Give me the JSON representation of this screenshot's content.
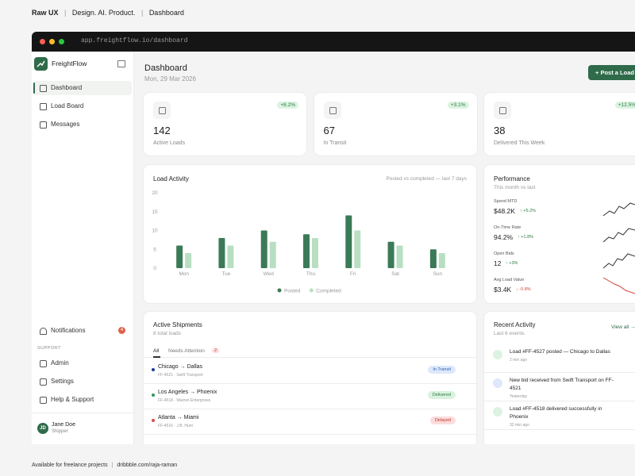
{
  "header": {
    "brand": "Raw UX",
    "tagline": "Design. AI. Product.",
    "page": "Dashboard"
  },
  "browser": {
    "url": "app.freightflow.io/dashboard"
  },
  "sidebar": {
    "app_name": "FreightFlow",
    "nav": [
      "Dashboard",
      "Load Board",
      "Messages"
    ],
    "notifications": {
      "label": "Notifications",
      "count": "4"
    },
    "support_heading": "SUPPORT",
    "support": [
      "Admin",
      "Settings",
      "Help & Support"
    ],
    "user": {
      "initials": "JD",
      "name": "Jane Doe",
      "role": "Shipper"
    }
  },
  "main": {
    "title": "Dashboard",
    "date": "Mon, 29 Mar 2026",
    "action": "+ Post a Load"
  },
  "stats": [
    {
      "value": "142",
      "label": "Active Loads",
      "change": "+8.2%"
    },
    {
      "value": "67",
      "label": "In Transit",
      "change": "+3.1%"
    },
    {
      "value": "38",
      "label": "Delivered This Week",
      "change": "+12.5%"
    }
  ],
  "chart_data": {
    "type": "bar",
    "title": "Load Activity",
    "subtitle": "Posted vs completed — last 7 days",
    "categories": [
      "Mon",
      "Tue",
      "Wed",
      "Thu",
      "Fri",
      "Sat",
      "Sun"
    ],
    "series": [
      {
        "name": "Posted",
        "color": "#3b7a57",
        "values": [
          6,
          8,
          10,
          9,
          14,
          7,
          5
        ]
      },
      {
        "name": "Completed",
        "color": "#b9dfc3",
        "values": [
          4,
          6,
          7,
          8,
          10,
          6,
          4
        ]
      }
    ],
    "ylim": [
      0,
      20
    ],
    "yticks": [
      0,
      5,
      10,
      15,
      20
    ],
    "grid": false,
    "legend": "bottom"
  },
  "performance": {
    "title": "Performance",
    "subtitle": "This month vs last",
    "metrics": [
      {
        "label": "Spend MTD",
        "value": "$48.2K",
        "change": "↑ +5.2%"
      },
      {
        "label": "On-Time Rate",
        "value": "94.2%",
        "change": "↑ +1.8%"
      },
      {
        "label": "Open Bids",
        "value": "12",
        "change": "↑ +3%"
      },
      {
        "label": "Avg Load Value",
        "value": "$3.4K",
        "change": "↓ -0.8%"
      }
    ]
  },
  "shipments": {
    "title": "Active Shipments",
    "subtitle": "8 total loads",
    "tabs": [
      "All",
      "Needs Attention"
    ],
    "tab_count": "2",
    "rows": [
      {
        "route": "Chicago → Dallas",
        "meta": "FF-4521 · Swift Transport",
        "status": "In Transit"
      },
      {
        "route": "Los Angeles → Phoenix",
        "meta": "FF-4518 · Warren Enterprises",
        "status": "Delivered"
      },
      {
        "route": "Atlanta → Miami",
        "meta": "FF-4516 · J.B. Hunt",
        "status": "Delayed"
      }
    ]
  },
  "activity": {
    "title": "Recent Activity",
    "subtitle": "Last 6 events",
    "link": "View all →",
    "items": [
      {
        "text": "Load #FF-4527 posted — Chicago to Dallas",
        "time": "2 min ago"
      },
      {
        "text": "New bid received from Swift Transport on FF-4521",
        "time": "Yesterday"
      },
      {
        "text": "Load #FF-4518 delivered successfully in Phoenix",
        "time": "32 min ago"
      }
    ]
  },
  "footer": {
    "note": "Available for freelance projects",
    "link": "dribbble.com/raja-raman"
  }
}
